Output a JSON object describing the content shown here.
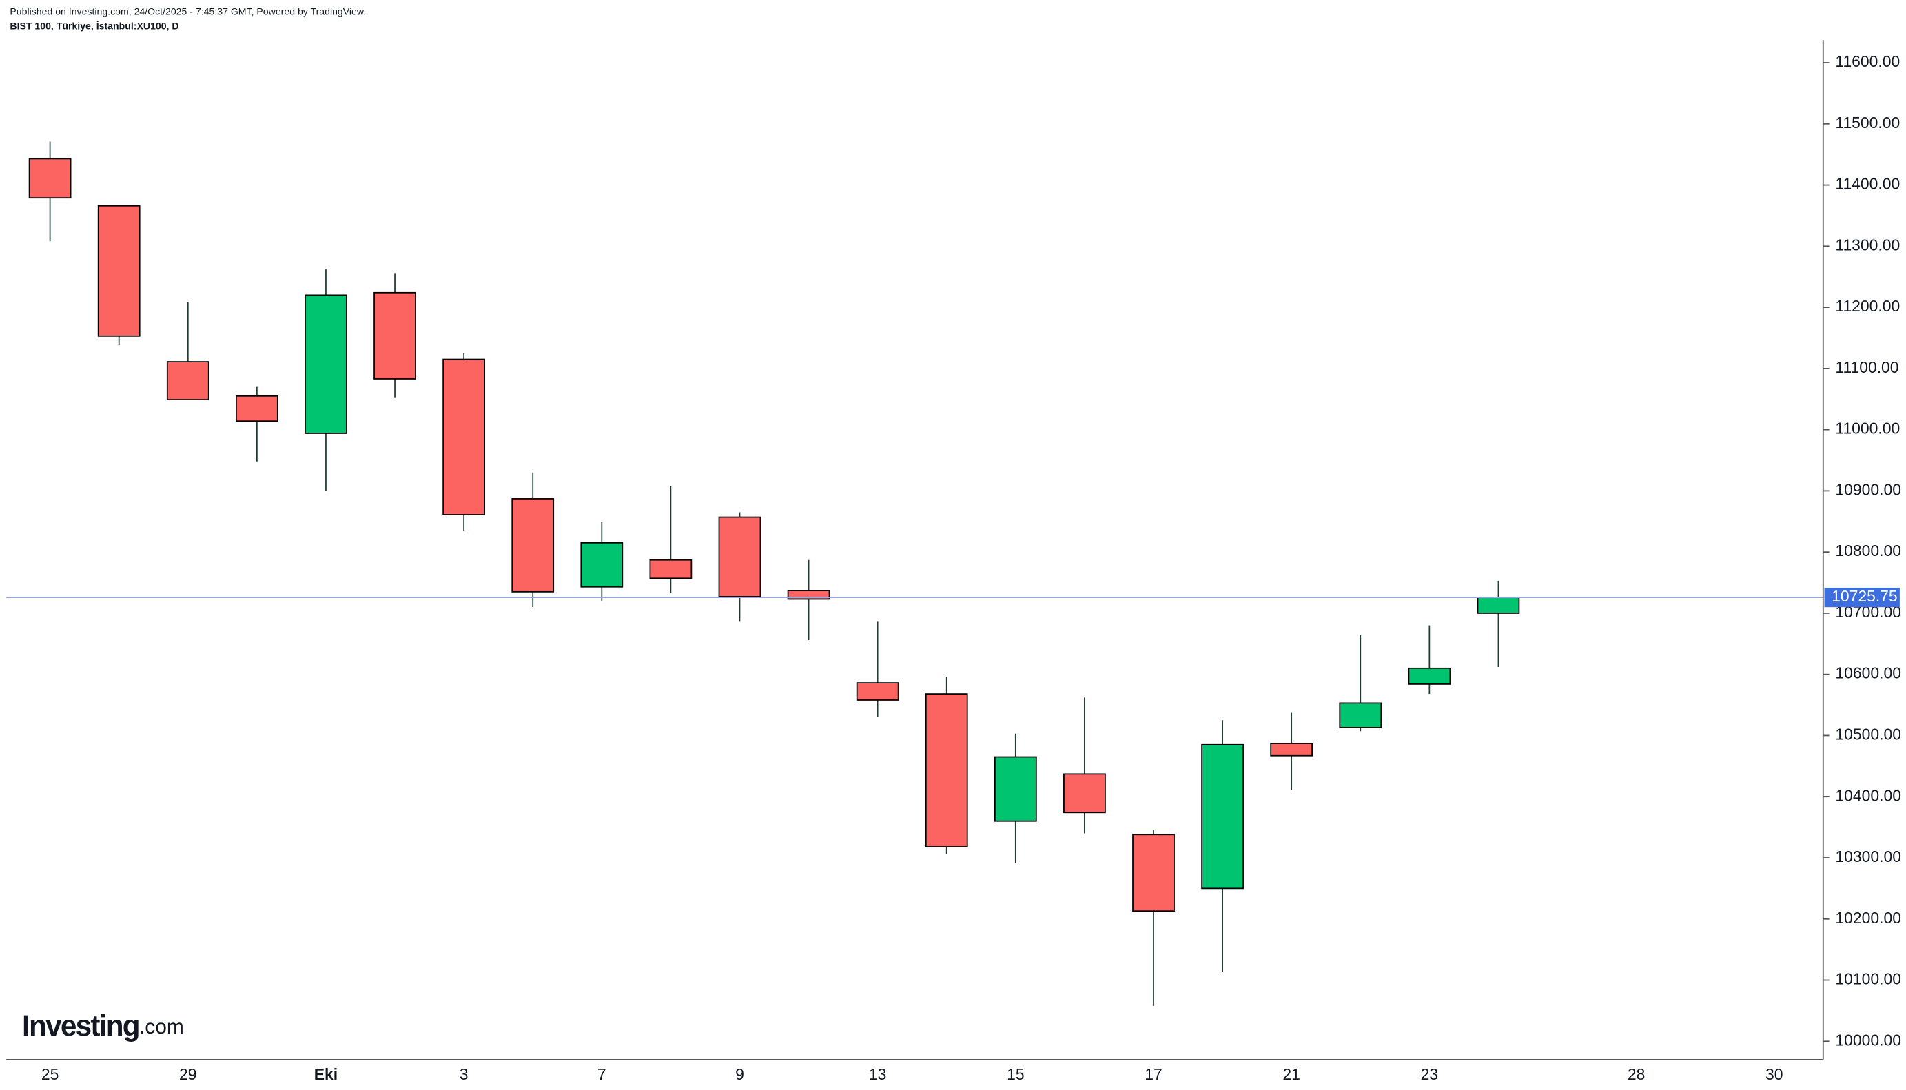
{
  "chart_data": {
    "type": "candlestick",
    "published": "Published on Investing.com, 24/Oct/2025 - 7:45:37 GMT, Powered by TradingView.",
    "title": "BIST 100, Türkiye, İstanbul:XU100, D",
    "logo": "Investing",
    "logo_suffix": ".com",
    "categories": [
      "25",
      null,
      "29",
      null,
      "Eki",
      null,
      "3",
      null,
      "7",
      null,
      "9",
      null,
      "13",
      null,
      "15",
      null,
      "17",
      null,
      "21",
      null,
      "23",
      null,
      null,
      "28",
      null,
      "30"
    ],
    "open": [
      11443,
      11366,
      11111,
      11055,
      10994,
      11224,
      11115,
      10887,
      10743,
      10787,
      10857,
      10737,
      10586,
      10568,
      10360,
      10437,
      10338,
      10250,
      10487,
      10513,
      10584,
      10700,
      null,
      null,
      null,
      null
    ],
    "high": [
      11471,
      11366,
      11208,
      11071,
      11262,
      11256,
      11125,
      10930,
      10849,
      10908,
      10865,
      10787,
      10686,
      10596,
      10503,
      10562,
      10346,
      10525,
      10537,
      10664,
      10680,
      10753,
      null,
      null,
      null,
      null
    ],
    "low": [
      11308,
      11139,
      11049,
      10948,
      10900,
      11053,
      10835,
      10710,
      10720,
      10733,
      10686,
      10656,
      10531,
      10306,
      10292,
      10340,
      10058,
      10113,
      10411,
      10507,
      10568,
      10612,
      null,
      null,
      null,
      null
    ],
    "close": [
      11379,
      11153,
      11049,
      11014,
      11220,
      11083,
      10861,
      10735,
      10815,
      10757,
      10727,
      10723,
      10558,
      10318,
      10465,
      10374,
      10213,
      10485,
      10467,
      10553,
      10610,
      10725.75,
      null,
      null,
      null,
      null
    ],
    "up_color": "#00c46f",
    "down_color": "#fc6462",
    "last_price": 10725.75,
    "ylim": [
      9970,
      11637
    ],
    "yticks": [
      {
        "value": 10000,
        "label": "10000.00"
      },
      {
        "value": 10100,
        "label": "10100.00"
      },
      {
        "value": 10200,
        "label": "10200.00"
      },
      {
        "value": 10300,
        "label": "10300.00"
      },
      {
        "value": 10400,
        "label": "10400.00"
      },
      {
        "value": 10500,
        "label": "10500.00"
      },
      {
        "value": 10600,
        "label": "10600.00"
      },
      {
        "value": 10700,
        "label": "10700.00"
      },
      {
        "value": 10800,
        "label": "10800.00"
      },
      {
        "value": 10900,
        "label": "10900.00"
      },
      {
        "value": 11000,
        "label": "11000.00"
      },
      {
        "value": 11100,
        "label": "11100.00"
      },
      {
        "value": 11200,
        "label": "11200.00"
      },
      {
        "value": 11300,
        "label": "11300.00"
      },
      {
        "value": 11400,
        "label": "11400.00"
      },
      {
        "value": 11500,
        "label": "11500.00"
      },
      {
        "value": 11600,
        "label": "11600.00"
      }
    ]
  }
}
